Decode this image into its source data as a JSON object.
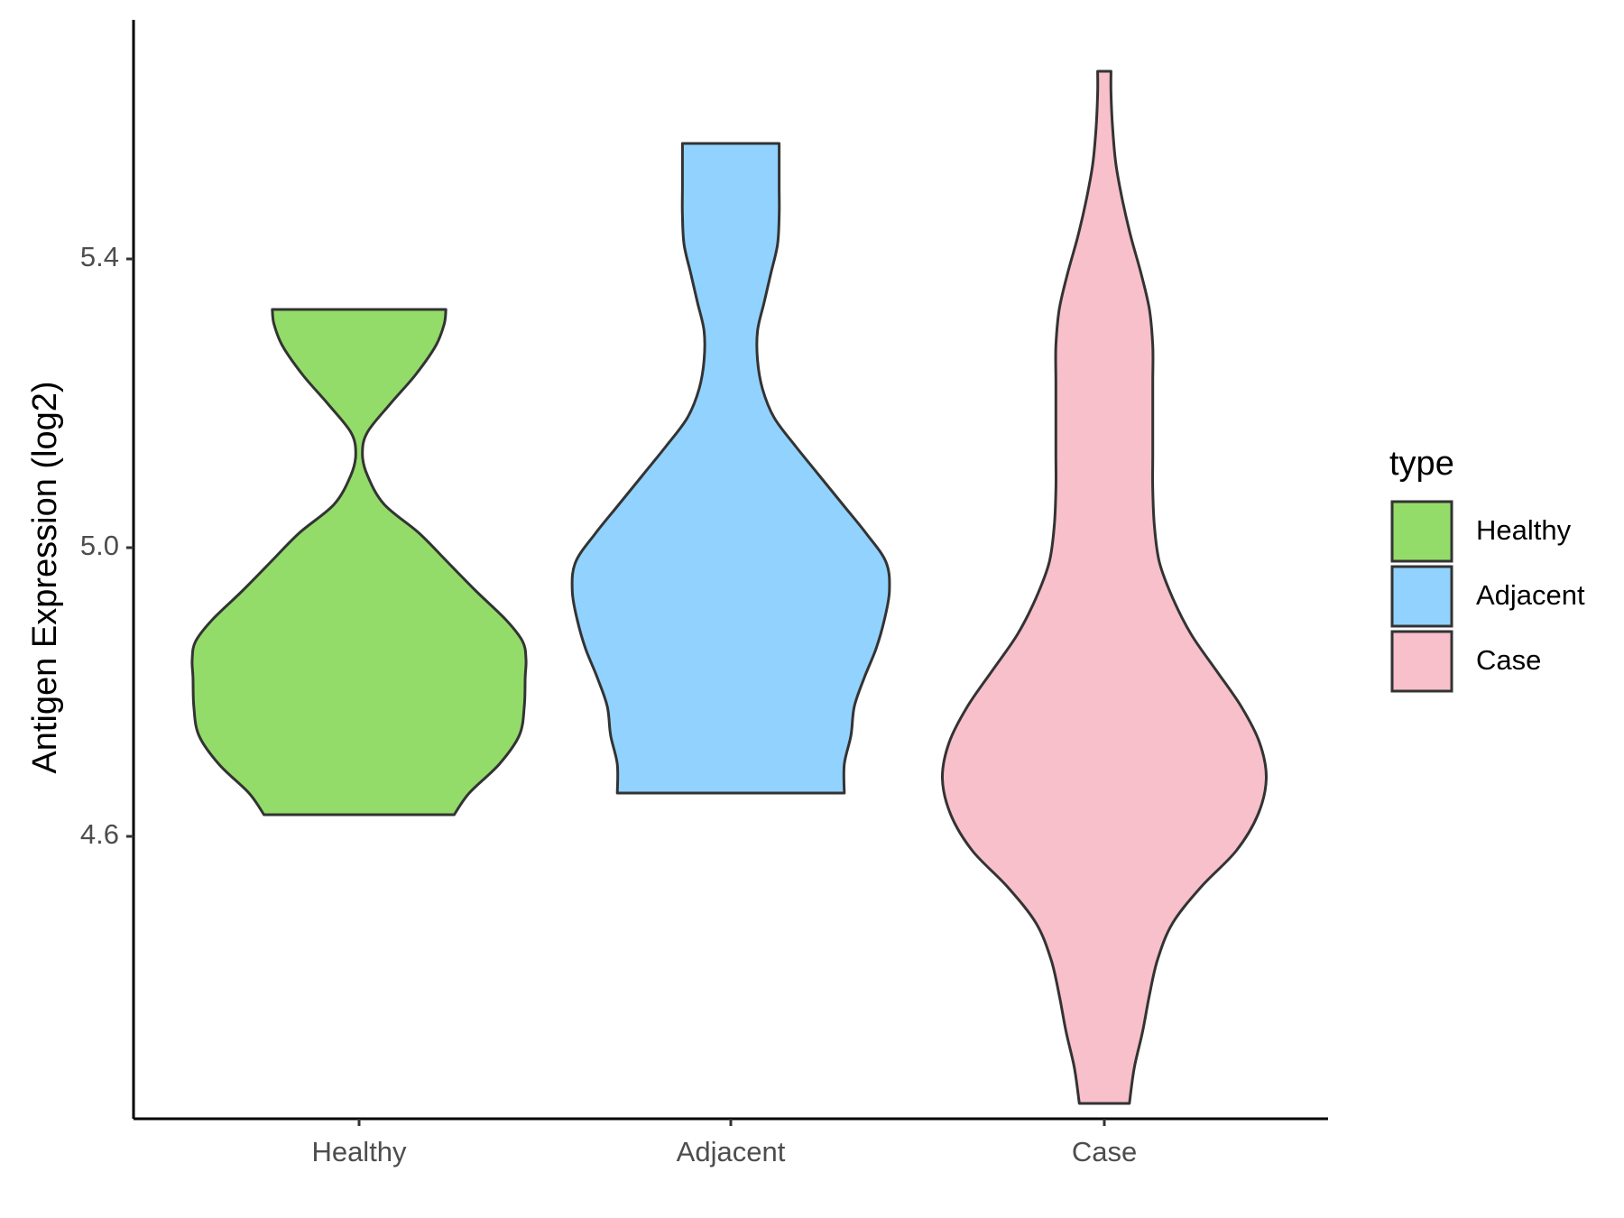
{
  "chart_data": {
    "type": "violin",
    "ylabel": "Antigen Expression (log2)",
    "xlabel": "",
    "categories": [
      "Healthy",
      "Adjacent",
      "Case"
    ],
    "yticks": [
      4.6,
      5.0,
      5.4
    ],
    "ytick_labels": [
      "4.6",
      "5.0",
      "5.4"
    ],
    "ylim": [
      4.23,
      5.75
    ],
    "grid": false,
    "legend": {
      "title": "type",
      "position": "right",
      "items": [
        {
          "label": "Healthy",
          "color": "#93DC69"
        },
        {
          "label": "Adjacent",
          "color": "#92D2FE"
        },
        {
          "label": "Case",
          "color": "#F7C0CB"
        }
      ]
    },
    "series": [
      {
        "name": "Healthy",
        "color": "#93DC69",
        "min": 4.63,
        "max": 5.33,
        "density_y": [
          4.63,
          4.66,
          4.7,
          4.74,
          4.78,
          4.82,
          4.845,
          4.87,
          4.9,
          4.94,
          4.98,
          5.02,
          5.06,
          5.1,
          5.13,
          5.16,
          5.2,
          5.24,
          5.28,
          5.31,
          5.33
        ],
        "density_w": [
          0.57,
          0.66,
          0.84,
          0.96,
          0.99,
          0.995,
          1.0,
          0.98,
          0.88,
          0.7,
          0.53,
          0.36,
          0.15,
          0.05,
          0.02,
          0.05,
          0.19,
          0.34,
          0.46,
          0.51,
          0.52
        ]
      },
      {
        "name": "Adjacent",
        "color": "#92D2FE",
        "min": 4.66,
        "max": 5.56,
        "density_y": [
          4.66,
          4.7,
          4.74,
          4.78,
          4.82,
          4.86,
          4.9,
          4.94,
          4.98,
          5.02,
          5.06,
          5.1,
          5.14,
          5.18,
          5.22,
          5.26,
          5.3,
          5.34,
          5.38,
          5.42,
          5.46,
          5.5,
          5.54,
          5.56
        ],
        "density_w": [
          0.68,
          0.68,
          0.72,
          0.74,
          0.8,
          0.87,
          0.92,
          0.95,
          0.93,
          0.81,
          0.67,
          0.53,
          0.39,
          0.26,
          0.19,
          0.16,
          0.16,
          0.2,
          0.24,
          0.28,
          0.29,
          0.29,
          0.29,
          0.29
        ]
      },
      {
        "name": "Case",
        "color": "#F7C0CB",
        "min": 4.23,
        "max": 5.66,
        "density_y": [
          4.23,
          4.28,
          4.33,
          4.38,
          4.43,
          4.48,
          4.53,
          4.58,
          4.63,
          4.68,
          4.73,
          4.78,
          4.83,
          4.88,
          4.93,
          4.98,
          5.03,
          5.08,
          5.13,
          5.18,
          5.23,
          5.28,
          5.33,
          5.38,
          5.43,
          5.48,
          5.53,
          5.58,
          5.63,
          5.66
        ],
        "density_w": [
          0.15,
          0.18,
          0.23,
          0.27,
          0.32,
          0.41,
          0.58,
          0.79,
          0.92,
          0.97,
          0.93,
          0.82,
          0.67,
          0.52,
          0.41,
          0.33,
          0.3,
          0.29,
          0.29,
          0.29,
          0.29,
          0.29,
          0.27,
          0.22,
          0.16,
          0.11,
          0.07,
          0.05,
          0.04,
          0.04
        ]
      }
    ]
  }
}
